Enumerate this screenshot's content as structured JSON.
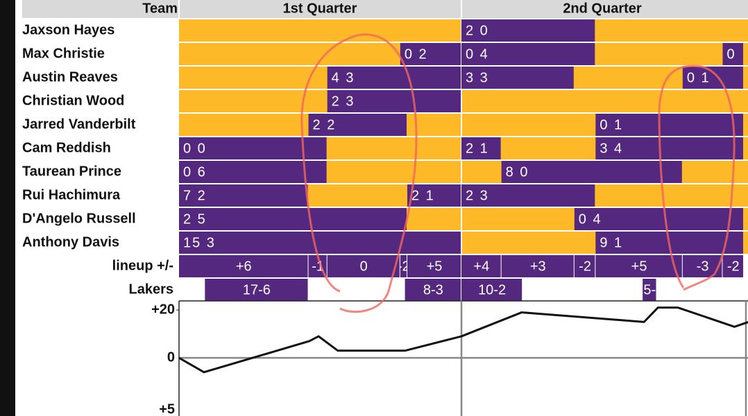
{
  "header": {
    "team": "Team",
    "quarters": [
      "1st Quarter",
      "2nd Quarter"
    ]
  },
  "timeline": {
    "xlim": [
      0,
      24
    ]
  },
  "players": [
    {
      "name": "Jaxson Hayes",
      "stints": [
        {
          "start": 12,
          "end": 17.7,
          "label": "2 0"
        }
      ]
    },
    {
      "name": "Max Christie",
      "stints": [
        {
          "start": 9.4,
          "end": 12,
          "label": "0 2"
        },
        {
          "start": 12,
          "end": 17.7,
          "label": "0 4"
        },
        {
          "start": 23.1,
          "end": 24,
          "label": "0"
        }
      ]
    },
    {
      "name": "Austin Reaves",
      "stints": [
        {
          "start": 6.3,
          "end": 12,
          "label": "4 3"
        },
        {
          "start": 12,
          "end": 16.8,
          "label": "3 3"
        },
        {
          "start": 21.4,
          "end": 24,
          "label": "0 1"
        }
      ]
    },
    {
      "name": "Christian Wood",
      "stints": [
        {
          "start": 6.3,
          "end": 12,
          "label": "2 3"
        }
      ]
    },
    {
      "name": "Jarred Vanderbilt",
      "stints": [
        {
          "start": 5.5,
          "end": 9.7,
          "label": "2 2"
        },
        {
          "start": 17.7,
          "end": 24,
          "label": "0 1"
        }
      ]
    },
    {
      "name": "Cam Reddish",
      "stints": [
        {
          "start": 0,
          "end": 6.3,
          "label": "0 0"
        },
        {
          "start": 12,
          "end": 13.7,
          "label": "2 1"
        },
        {
          "start": 17.7,
          "end": 24,
          "label": "3 4"
        }
      ]
    },
    {
      "name": "Taurean Prince",
      "stints": [
        {
          "start": 0,
          "end": 6.3,
          "label": "0 6"
        },
        {
          "start": 13.7,
          "end": 21.4,
          "label": "8 0"
        }
      ]
    },
    {
      "name": "Rui Hachimura",
      "stints": [
        {
          "start": 0,
          "end": 5.5,
          "label": "7 2"
        },
        {
          "start": 9.7,
          "end": 12,
          "label": "2 1"
        },
        {
          "start": 12,
          "end": 17.7,
          "label": "2 3"
        }
      ]
    },
    {
      "name": "D'Angelo Russell",
      "stints": [
        {
          "start": 0,
          "end": 9.7,
          "label": "2 5"
        },
        {
          "start": 16.8,
          "end": 24,
          "label": "0 4"
        }
      ]
    },
    {
      "name": "Anthony Davis",
      "stints": [
        {
          "start": 0,
          "end": 12,
          "label": "15 3"
        },
        {
          "start": 17.7,
          "end": 24,
          "label": "9 1"
        }
      ]
    }
  ],
  "lineup": {
    "label": "lineup +/-",
    "segments": [
      {
        "start": 0,
        "end": 5.5,
        "label": "+6"
      },
      {
        "start": 5.5,
        "end": 6.3,
        "label": "-1"
      },
      {
        "start": 6.3,
        "end": 9.4,
        "label": "0"
      },
      {
        "start": 9.4,
        "end": 9.7,
        "label": "-2"
      },
      {
        "start": 9.7,
        "end": 12,
        "label": "+5"
      },
      {
        "start": 12,
        "end": 13.7,
        "label": "+4"
      },
      {
        "start": 13.7,
        "end": 16.8,
        "label": "+3"
      },
      {
        "start": 16.8,
        "end": 17.7,
        "label": "-2"
      },
      {
        "start": 17.7,
        "end": 21.4,
        "label": "+5"
      },
      {
        "start": 21.4,
        "end": 23.1,
        "label": "-3"
      },
      {
        "start": 23.1,
        "end": 24,
        "label": "-2"
      }
    ]
  },
  "team_runs": {
    "label": "Lakers",
    "runs": [
      {
        "start": 1.1,
        "end": 5.5,
        "label": "17-6"
      },
      {
        "start": 9.6,
        "end": 12,
        "label": "8-3"
      },
      {
        "start": 12,
        "end": 14.6,
        "label": "10-2"
      },
      {
        "start": 19.7,
        "end": 20.3,
        "label": "5-"
      }
    ]
  },
  "margin_chart": {
    "x": [
      0,
      1.06,
      5.54,
      5.93,
      6.75,
      9.6,
      12,
      14.56,
      19.76,
      20.35,
      21.2,
      23.6,
      24.2
    ],
    "values": [
      0,
      -6,
      7,
      9,
      3,
      3,
      9,
      19,
      15,
      21,
      21,
      13,
      15
    ],
    "ylim": [
      -24.3,
      23.8
    ],
    "yticks": [
      {
        "value": 20,
        "label": "+20"
      },
      0
    ],
    "bottom_label": "+5"
  }
}
